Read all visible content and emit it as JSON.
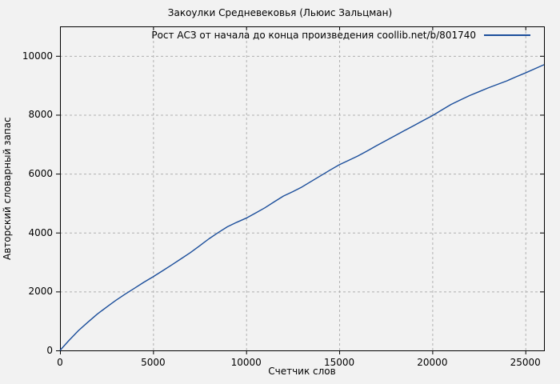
{
  "figure": {
    "background_color": "#f2f2f2"
  },
  "chart_data": {
    "type": "line",
    "title": "Закоулки Средневековья (Льюис Зальцман)",
    "xlabel": "Счетчик слов",
    "ylabel": "Авторский словарный запас",
    "xlim": [
      0,
      26000
    ],
    "ylim": [
      0,
      11000
    ],
    "x_ticks": [
      0,
      5000,
      10000,
      15000,
      20000,
      25000
    ],
    "y_ticks": [
      0,
      2000,
      4000,
      6000,
      8000,
      10000
    ],
    "grid": true,
    "grid_color": "#b0b0b0",
    "border_color": "#000000",
    "legend_position": "top-right-inside",
    "series": [
      {
        "name": "Рост АСЗ от начала до конца произведения coollib.net/b/801740",
        "color": "#1b4e9b",
        "points": [
          [
            0,
            0
          ],
          [
            500,
            350
          ],
          [
            1000,
            680
          ],
          [
            1500,
            960
          ],
          [
            2000,
            1230
          ],
          [
            2500,
            1470
          ],
          [
            3000,
            1700
          ],
          [
            3500,
            1910
          ],
          [
            4000,
            2110
          ],
          [
            4500,
            2310
          ],
          [
            5000,
            2500
          ],
          [
            5500,
            2700
          ],
          [
            6000,
            2900
          ],
          [
            6500,
            3110
          ],
          [
            7000,
            3320
          ],
          [
            7500,
            3550
          ],
          [
            8000,
            3790
          ],
          [
            8500,
            4000
          ],
          [
            9000,
            4200
          ],
          [
            9500,
            4350
          ],
          [
            10000,
            4490
          ],
          [
            10500,
            4660
          ],
          [
            11000,
            4840
          ],
          [
            11500,
            5040
          ],
          [
            12000,
            5240
          ],
          [
            12500,
            5390
          ],
          [
            13000,
            5550
          ],
          [
            13500,
            5740
          ],
          [
            14000,
            5930
          ],
          [
            14500,
            6120
          ],
          [
            15000,
            6300
          ],
          [
            15500,
            6450
          ],
          [
            16000,
            6600
          ],
          [
            16500,
            6770
          ],
          [
            17000,
            6950
          ],
          [
            17500,
            7120
          ],
          [
            18000,
            7290
          ],
          [
            18500,
            7460
          ],
          [
            19000,
            7630
          ],
          [
            19500,
            7800
          ],
          [
            20000,
            7970
          ],
          [
            20500,
            8160
          ],
          [
            21000,
            8350
          ],
          [
            21500,
            8500
          ],
          [
            22000,
            8650
          ],
          [
            22500,
            8780
          ],
          [
            23000,
            8910
          ],
          [
            23500,
            9030
          ],
          [
            24000,
            9150
          ],
          [
            24500,
            9290
          ],
          [
            25000,
            9420
          ],
          [
            25500,
            9560
          ],
          [
            26000,
            9700
          ]
        ]
      }
    ]
  }
}
